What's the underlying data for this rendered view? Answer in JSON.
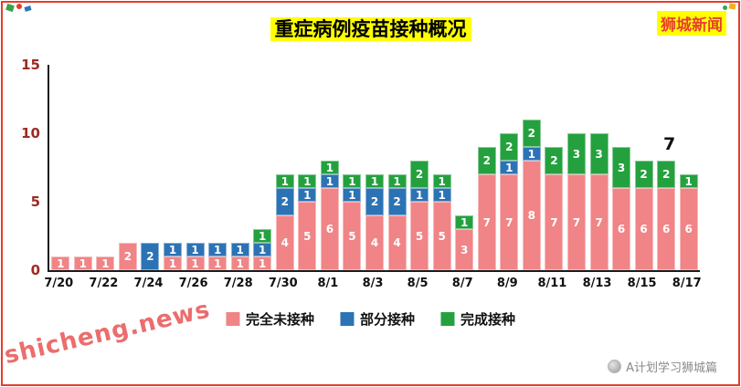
{
  "page": {
    "brand_badge": "狮城新闻",
    "watermark": "shicheng.news",
    "credit": "A计划学习狮城篇"
  },
  "chart_data": {
    "type": "bar",
    "stacked": true,
    "title": "重症病例疫苗接种概况",
    "xlabel": "",
    "ylabel": "",
    "ylim": [
      0,
      15
    ],
    "yticks": [
      0,
      5,
      10,
      15
    ],
    "grid": false,
    "legend_position": "bottom",
    "annotation": {
      "text": "7"
    },
    "categories": [
      "7/20",
      "7/21",
      "7/22",
      "7/23",
      "7/24",
      "7/25",
      "7/26",
      "7/27",
      "7/28",
      "7/29",
      "7/30",
      "7/31",
      "8/1",
      "8/2",
      "8/3",
      "8/4",
      "8/5",
      "8/6",
      "8/7",
      "8/8",
      "8/9",
      "8/10",
      "8/11",
      "8/12",
      "8/13",
      "8/14",
      "8/15",
      "8/16",
      "8/17"
    ],
    "x_tick_labels": [
      "7/20",
      "7/22",
      "7/24",
      "7/26",
      "7/28",
      "7/30",
      "8/1",
      "8/3",
      "8/5",
      "8/7",
      "8/9",
      "8/11",
      "8/13",
      "8/15",
      "8/17"
    ],
    "series": [
      {
        "name": "完全未接种",
        "color": "#f08486",
        "values": [
          1,
          1,
          1,
          2,
          0,
          1,
          1,
          1,
          1,
          1,
          4,
          5,
          6,
          5,
          4,
          4,
          5,
          5,
          3,
          7,
          7,
          8,
          7,
          7,
          7,
          6,
          6,
          6,
          6
        ]
      },
      {
        "name": "部分接种",
        "color": "#2c73b5",
        "values": [
          0,
          0,
          0,
          0,
          2,
          1,
          1,
          1,
          1,
          1,
          2,
          1,
          1,
          1,
          2,
          2,
          1,
          1,
          0,
          0,
          1,
          1,
          0,
          0,
          0,
          0,
          0,
          0,
          0
        ]
      },
      {
        "name": "完成接种",
        "color": "#24a13e",
        "values": [
          0,
          0,
          0,
          0,
          0,
          0,
          0,
          0,
          0,
          1,
          1,
          1,
          1,
          1,
          1,
          1,
          2,
          1,
          1,
          2,
          2,
          2,
          2,
          3,
          3,
          3,
          2,
          2,
          1
        ]
      }
    ]
  }
}
